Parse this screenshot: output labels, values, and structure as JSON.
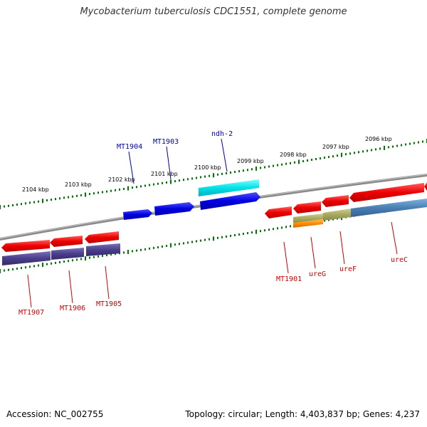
{
  "title": "Mycobacterium tuberculosis CDC1551, complete genome",
  "footer": {
    "accession": "Accession: NC_002755",
    "summary": "Topology: circular; Length: 4,403,837 bp; Genes: 4,237"
  },
  "ruler_labels": [
    "2104 kbp",
    "2103 kbp",
    "2102 kbp",
    "2101 kbp",
    "2100 kbp",
    "2099 kbp",
    "2098 kbp",
    "2097 kbp",
    "2096 kbp"
  ],
  "gene_labels": {
    "MT1904": "MT1904",
    "MT1903": "MT1903",
    "ndh2": "ndh-2",
    "MT1907": "MT1907",
    "MT1906": "MT1906",
    "MT1905": "MT1905",
    "MT1901": "MT1901",
    "ureG": "ureG",
    "ureF": "ureF",
    "ureC": "ureC"
  },
  "colors": {
    "forward_gene": "#0000e0",
    "reverse_gene": "#ee0000",
    "forward_label": "#0000aa",
    "reverse_label": "#cc0000",
    "cds_reverse": "#4a3f8a",
    "cds_ureC": "#4a7fb5",
    "cds_ureF": "#a8a860",
    "cds_ureG": "#ff8c00",
    "rna_like": "#00d8e0",
    "backbone": "#888888",
    "ticks": "#007700"
  }
}
